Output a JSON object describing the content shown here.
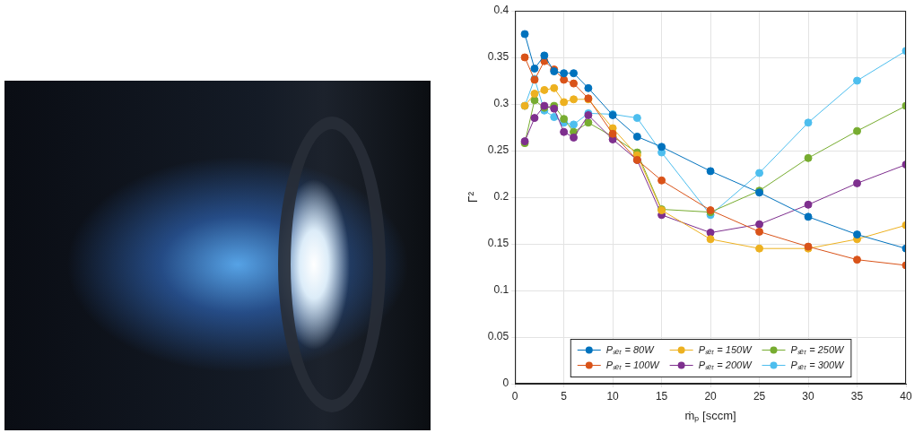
{
  "chart_data": {
    "type": "line",
    "x_label": "ṁₚ [sccm]",
    "y_label": "Γ²",
    "x": [
      1,
      2,
      3,
      4,
      5,
      6,
      7.5,
      10,
      12.5,
      15,
      20,
      25,
      30,
      35,
      40
    ],
    "series": [
      {
        "name": "Pₛₑₜ = 80W",
        "color": "#0072BD",
        "values": [
          0.375,
          0.338,
          0.352,
          0.335,
          0.333,
          0.333,
          0.317,
          0.288,
          0.265,
          0.254,
          0.228,
          0.205,
          0.179,
          0.16,
          0.145
        ]
      },
      {
        "name": "Pₛₑₜ = 100W",
        "color": "#D95319",
        "values": [
          0.35,
          0.326,
          0.346,
          0.337,
          0.326,
          0.322,
          0.306,
          0.268,
          0.24,
          0.218,
          0.186,
          0.163,
          0.147,
          0.133,
          0.127
        ]
      },
      {
        "name": "Pₛₑₜ = 150W",
        "color": "#EDB120",
        "values": [
          0.298,
          0.311,
          0.315,
          0.317,
          0.302,
          0.305,
          0.305,
          0.274,
          0.245,
          0.186,
          0.155,
          0.145,
          0.145,
          0.155,
          0.17
        ]
      },
      {
        "name": "Pₛₑₜ = 200W",
        "color": "#7E2F8E",
        "values": [
          0.26,
          0.285,
          0.298,
          0.295,
          0.27,
          0.264,
          0.288,
          0.262,
          0.24,
          0.181,
          0.162,
          0.171,
          0.192,
          0.215,
          0.235
        ]
      },
      {
        "name": "Pₛₑₜ = 250W",
        "color": "#77AC30",
        "values": [
          0.258,
          0.304,
          0.296,
          0.298,
          0.284,
          0.27,
          0.28,
          0.265,
          0.248,
          0.187,
          0.184,
          0.207,
          0.242,
          0.271,
          0.298
        ]
      },
      {
        "name": "Pₛₑₜ = 300W",
        "color": "#4DBEEE",
        "values": [
          0.298,
          0.327,
          0.293,
          0.286,
          0.28,
          0.278,
          0.29,
          0.289,
          0.285,
          0.248,
          0.181,
          0.226,
          0.28,
          0.325,
          0.357
        ]
      }
    ],
    "xlim": [
      0,
      40
    ],
    "ylim": [
      0,
      0.4
    ],
    "xticks": [
      0,
      5,
      10,
      15,
      20,
      25,
      30,
      35,
      40
    ],
    "yticks": [
      0,
      0.05,
      0.1,
      0.15,
      0.2,
      0.25,
      0.3,
      0.35,
      0.4
    ],
    "grid": true,
    "legend": "bottom",
    "marker": "circle"
  }
}
